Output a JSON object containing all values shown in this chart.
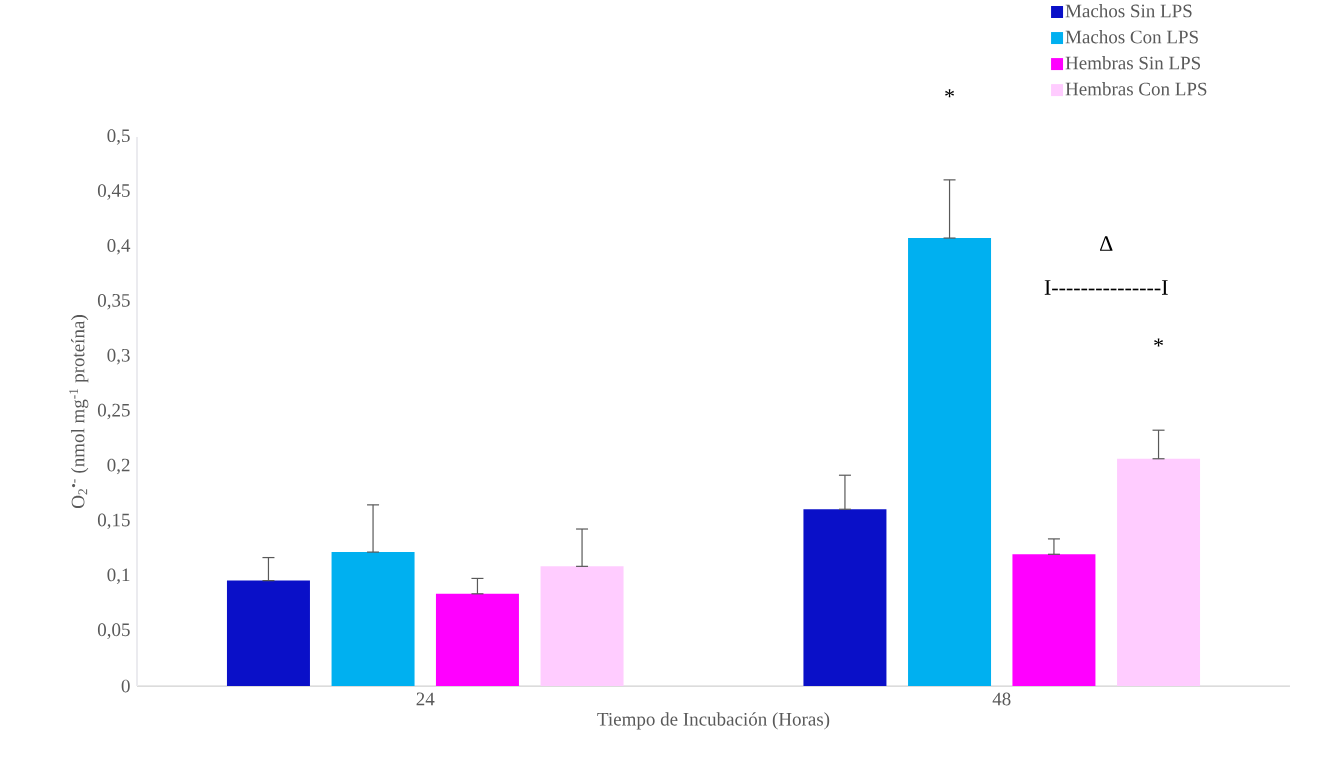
{
  "chart_data": {
    "type": "bar",
    "xlabel": "Tiempo de Incubación (Horas)",
    "ylabel": "O$_{2}$$^{•-}$ (nmol mg$^{-1}$ proteína)",
    "categories": [
      "24",
      "48"
    ],
    "series": [
      {
        "name": "Machos Sin LPS",
        "color": "#0a10c8",
        "values": [
          0.096,
          0.161
        ],
        "errors": [
          [
            0.096,
            0.117
          ],
          [
            0.161,
            0.192
          ]
        ]
      },
      {
        "name": "Machos Con LPS",
        "color": "#00b0f0",
        "values": [
          0.122,
          0.408
        ],
        "errors": [
          [
            0.122,
            0.165
          ],
          [
            0.408,
            0.461
          ]
        ]
      },
      {
        "name": "Hembras Sin LPS",
        "color": "#ff00ff",
        "values": [
          0.084,
          0.12
        ],
        "errors": [
          [
            0.084,
            0.098
          ],
          [
            0.12,
            0.134
          ]
        ]
      },
      {
        "name": "Hembras Con LPS",
        "color": "#ffccff",
        "values": [
          0.109,
          0.207
        ],
        "errors": [
          [
            0.109,
            0.143
          ],
          [
            0.207,
            0.233
          ]
        ]
      }
    ],
    "ylim": [
      0,
      0.5
    ],
    "yticks": [
      0,
      {
        "value": 0.05,
        "label": "0,05"
      },
      {
        "value": 0.1,
        "label": "0,1"
      },
      {
        "value": 0.15,
        "label": "0,15"
      },
      {
        "value": 0.2,
        "label": "0,2"
      },
      {
        "value": 0.25,
        "label": "0,25"
      },
      {
        "value": 0.3,
        "label": "0,3"
      },
      {
        "value": 0.35,
        "label": "0,35"
      },
      {
        "value": 0.4,
        "label": "0,4"
      },
      {
        "value": 0.45,
        "label": "0,45"
      },
      {
        "value": 0.5,
        "label": "0,5"
      }
    ],
    "legend": "top right",
    "annotations": [
      "*",
      "Δ",
      "I---------------I",
      "*"
    ]
  }
}
